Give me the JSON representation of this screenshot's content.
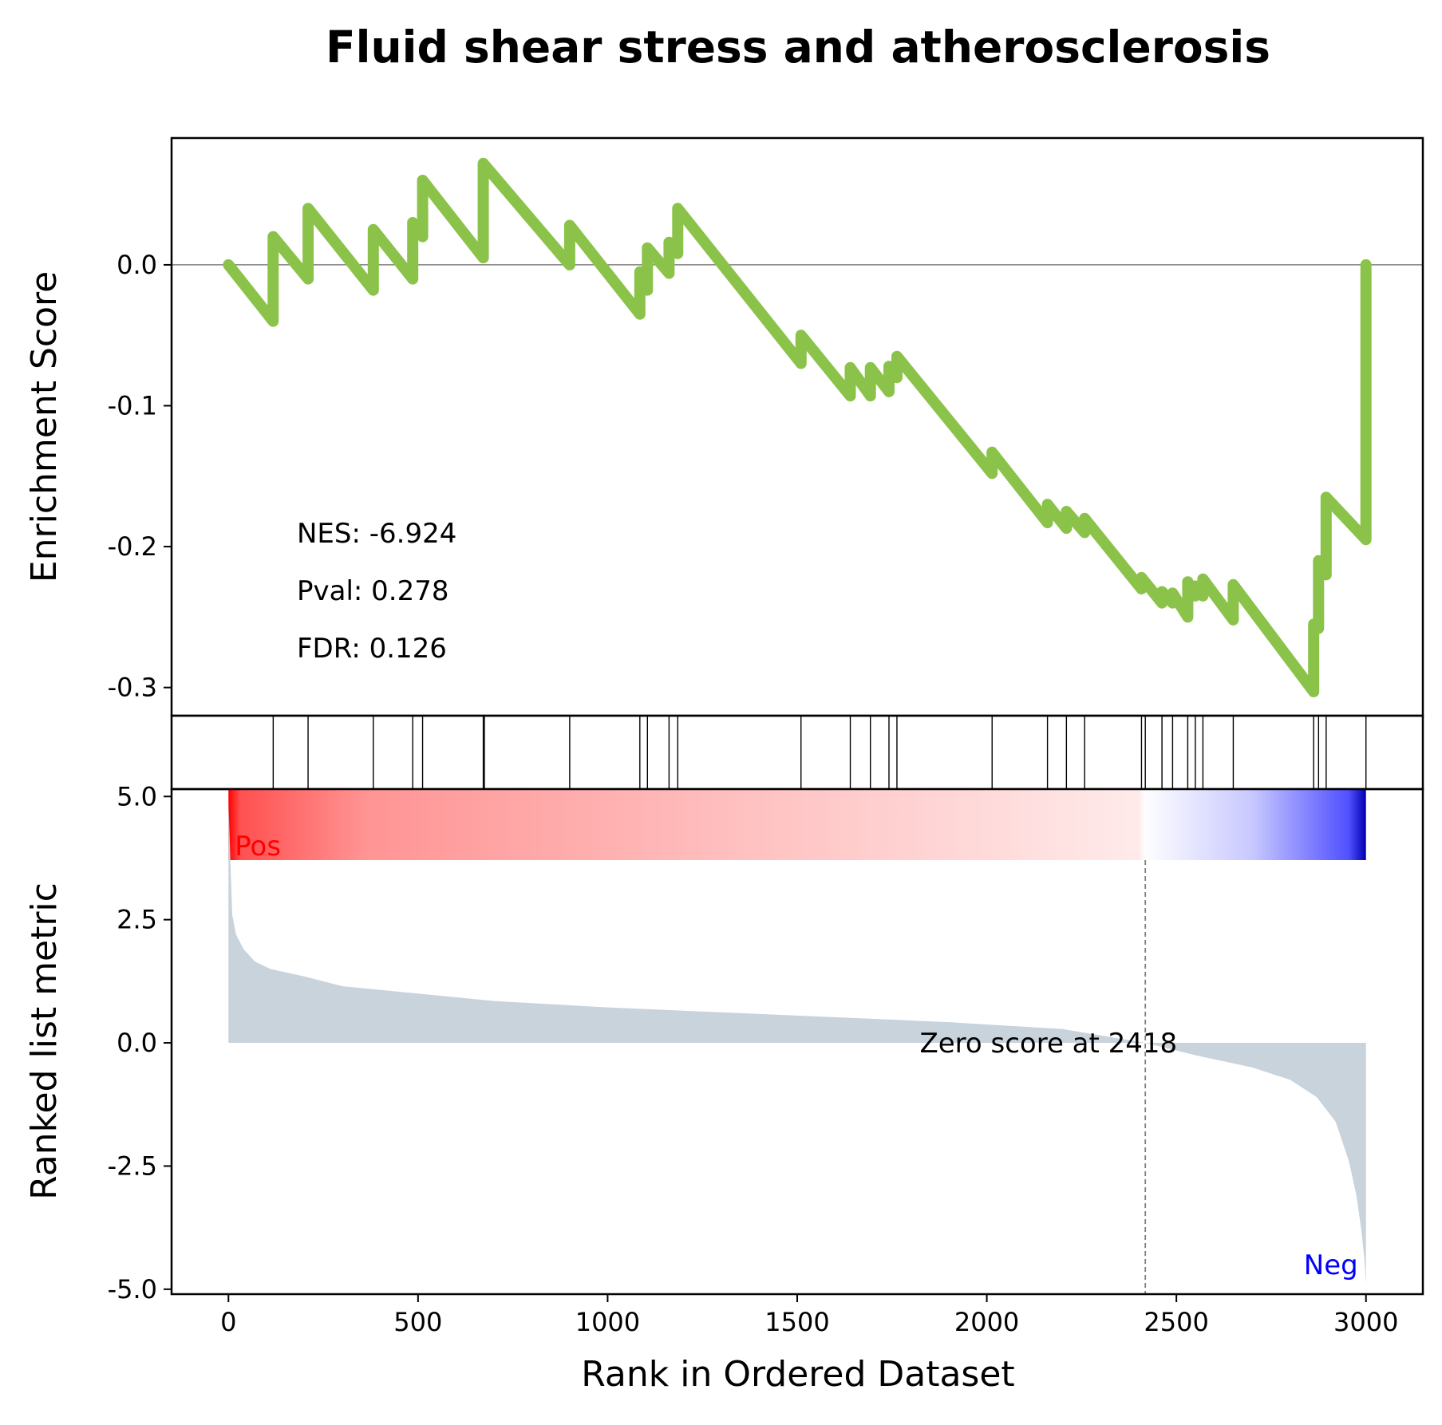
{
  "chart_data": {
    "type": "line",
    "title": "Fluid shear stress and atherosclerosis",
    "xlabel": "Rank in Ordered Dataset",
    "xlim": [
      -150,
      3150
    ],
    "xticks": [
      0,
      500,
      1000,
      1500,
      2000,
      2500,
      3000
    ],
    "x_tick_labels": [
      "0",
      "500",
      "1000",
      "1500",
      "2000",
      "2500",
      "3000"
    ],
    "enrichment": {
      "ylabel": "Enrichment Score",
      "ylim": [
        -0.32,
        0.09
      ],
      "yticks": [
        0.0,
        -0.1,
        -0.2,
        -0.3
      ],
      "y_tick_labels": [
        "0.0",
        "-0.1",
        "-0.2",
        "-0.3"
      ],
      "color": "#8bc34a",
      "points": [
        [
          0,
          0.0
        ],
        [
          118,
          -0.04
        ],
        [
          118,
          0.02
        ],
        [
          210,
          -0.01
        ],
        [
          210,
          0.04
        ],
        [
          382,
          -0.018
        ],
        [
          382,
          0.025
        ],
        [
          486,
          -0.01
        ],
        [
          486,
          0.03
        ],
        [
          512,
          0.02
        ],
        [
          512,
          0.06
        ],
        [
          672,
          0.005
        ],
        [
          672,
          0.072
        ],
        [
          900,
          0.0
        ],
        [
          900,
          0.028
        ],
        [
          1085,
          -0.035
        ],
        [
          1085,
          -0.005
        ],
        [
          1105,
          -0.018
        ],
        [
          1105,
          0.012
        ],
        [
          1162,
          -0.006
        ],
        [
          1162,
          0.016
        ],
        [
          1185,
          0.008
        ],
        [
          1185,
          0.04
        ],
        [
          1510,
          -0.07
        ],
        [
          1510,
          -0.05
        ],
        [
          1640,
          -0.093
        ],
        [
          1640,
          -0.073
        ],
        [
          1693,
          -0.093
        ],
        [
          1693,
          -0.073
        ],
        [
          1742,
          -0.09
        ],
        [
          1742,
          -0.072
        ],
        [
          1763,
          -0.08
        ],
        [
          1763,
          -0.065
        ],
        [
          2014,
          -0.148
        ],
        [
          2014,
          -0.133
        ],
        [
          2160,
          -0.183
        ],
        [
          2160,
          -0.17
        ],
        [
          2210,
          -0.187
        ],
        [
          2210,
          -0.175
        ],
        [
          2258,
          -0.19
        ],
        [
          2258,
          -0.18
        ],
        [
          2408,
          -0.23
        ],
        [
          2408,
          -0.222
        ],
        [
          2462,
          -0.24
        ],
        [
          2462,
          -0.232
        ],
        [
          2490,
          -0.24
        ],
        [
          2490,
          -0.233
        ],
        [
          2530,
          -0.25
        ],
        [
          2530,
          -0.225
        ],
        [
          2550,
          -0.235
        ],
        [
          2550,
          -0.228
        ],
        [
          2570,
          -0.235
        ],
        [
          2570,
          -0.223
        ],
        [
          2650,
          -0.252
        ],
        [
          2650,
          -0.227
        ],
        [
          2862,
          -0.303
        ],
        [
          2862,
          -0.255
        ],
        [
          2875,
          -0.258
        ],
        [
          2875,
          -0.21
        ],
        [
          2895,
          -0.22
        ],
        [
          2895,
          -0.165
        ],
        [
          3000,
          -0.195
        ],
        [
          3000,
          0.0
        ]
      ],
      "hline": 0.0
    },
    "hits": [
      118,
      210,
      382,
      486,
      512,
      672,
      675,
      900,
      1085,
      1105,
      1162,
      1185,
      1510,
      1640,
      1693,
      1742,
      1763,
      2014,
      2160,
      2210,
      2258,
      2408,
      2418,
      2462,
      2490,
      2530,
      2550,
      2570,
      2650,
      2862,
      2875,
      2895,
      3000
    ],
    "ranked_metric": {
      "ylabel": "Ranked list metric",
      "ylim": [
        -5.1,
        5.15
      ],
      "yticks": [
        5.0,
        2.5,
        0.0,
        -2.5,
        -5.0
      ],
      "y_tick_labels": [
        "5.0",
        "2.5",
        "0.0",
        "-2.5",
        "-5.0"
      ],
      "fill_color": "#c8d3dc",
      "profile": [
        [
          0,
          4.9
        ],
        [
          3,
          4.2
        ],
        [
          6,
          3.5
        ],
        [
          10,
          2.6
        ],
        [
          20,
          2.2
        ],
        [
          40,
          1.9
        ],
        [
          70,
          1.65
        ],
        [
          110,
          1.5
        ],
        [
          200,
          1.35
        ],
        [
          300,
          1.15
        ],
        [
          500,
          1.0
        ],
        [
          700,
          0.85
        ],
        [
          1000,
          0.72
        ],
        [
          1300,
          0.62
        ],
        [
          1600,
          0.52
        ],
        [
          1900,
          0.42
        ],
        [
          2200,
          0.28
        ],
        [
          2418,
          0.0
        ],
        [
          2550,
          -0.25
        ],
        [
          2700,
          -0.5
        ],
        [
          2800,
          -0.75
        ],
        [
          2870,
          -1.1
        ],
        [
          2920,
          -1.6
        ],
        [
          2955,
          -2.4
        ],
        [
          2975,
          -3.1
        ],
        [
          2988,
          -3.8
        ],
        [
          2996,
          -4.4
        ],
        [
          3000,
          -4.9
        ]
      ],
      "zero_cross": 2418,
      "zero_label": "Zero score at 2418",
      "pos_label": "Pos",
      "neg_label": "Neg",
      "pos_color": "#ff0000",
      "neg_color": "#0000ff"
    },
    "stats": {
      "nes": "NES: -6.924",
      "pval": "Pval: 0.278",
      "fdr": "FDR: 0.126"
    }
  }
}
